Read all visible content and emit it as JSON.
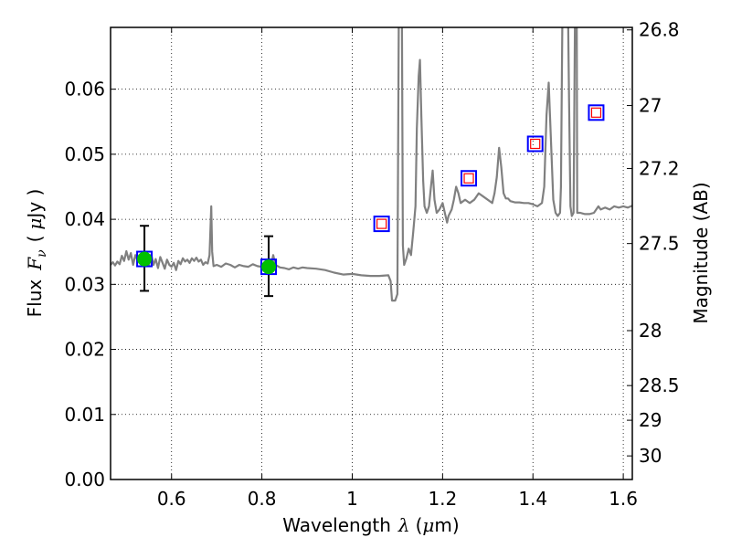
{
  "chart_data": {
    "type": "line",
    "xlabel_prefix": "Wavelength",
    "xlabel_symbol": "λ",
    "xlabel_unit_open": "(",
    "xlabel_unit_mu": "μ",
    "xlabel_unit_rest": "m)",
    "ylabel_prefix": "Flux",
    "ylabel_F": "F",
    "ylabel_nu": "ν",
    "ylabel_unit_open": "(",
    "ylabel_unit_mu": "μ",
    "ylabel_unit_rest": "Jy )",
    "y2label": "Magnitude (AB)",
    "xlim": [
      0.465,
      1.62
    ],
    "ylim": [
      0.0,
      0.0695
    ],
    "grid": true,
    "x_ticks": [
      0.6,
      0.8,
      1.0,
      1.2,
      1.4,
      1.6
    ],
    "x_tick_labels": [
      "0.6",
      "0.8",
      "1",
      "1.2",
      "1.4",
      "1.6"
    ],
    "y_ticks": [
      0.0,
      0.01,
      0.02,
      0.03,
      0.04,
      0.05,
      0.06
    ],
    "y_tick_labels": [
      "0.00",
      "0.01",
      "0.02",
      "0.03",
      "0.04",
      "0.05",
      "0.06"
    ],
    "y2_ticks": [
      26.8,
      27.0,
      27.2,
      27.5,
      28.0,
      28.5,
      29.0,
      30.0
    ],
    "y2_tick_labels": [
      "26.8",
      "27",
      "27.2",
      "27.5",
      "28",
      "28.5",
      "29",
      "30"
    ],
    "colors": {
      "spectrum": "#808080",
      "observed": "#00c000",
      "model_box": "#0000ff",
      "predicted_box": "#ff0000",
      "errorbar": "#000000",
      "grid": "#808080"
    },
    "spectrum": [
      [
        0.465,
        0.033
      ],
      [
        0.47,
        0.0334
      ],
      [
        0.475,
        0.0329
      ],
      [
        0.48,
        0.0335
      ],
      [
        0.485,
        0.0331
      ],
      [
        0.49,
        0.0344
      ],
      [
        0.495,
        0.0336
      ],
      [
        0.5,
        0.0351
      ],
      [
        0.505,
        0.0338
      ],
      [
        0.51,
        0.0348
      ],
      [
        0.515,
        0.033
      ],
      [
        0.52,
        0.0345
      ],
      [
        0.525,
        0.0337
      ],
      [
        0.53,
        0.034
      ],
      [
        0.535,
        0.0332
      ],
      [
        0.54,
        0.0338
      ],
      [
        0.545,
        0.0341
      ],
      [
        0.55,
        0.0328
      ],
      [
        0.555,
        0.0346
      ],
      [
        0.56,
        0.033
      ],
      [
        0.565,
        0.0339
      ],
      [
        0.57,
        0.0325
      ],
      [
        0.575,
        0.0342
      ],
      [
        0.58,
        0.0333
      ],
      [
        0.585,
        0.0324
      ],
      [
        0.59,
        0.0338
      ],
      [
        0.595,
        0.033
      ],
      [
        0.6,
        0.0327
      ],
      [
        0.605,
        0.0333
      ],
      [
        0.61,
        0.0322
      ],
      [
        0.615,
        0.0336
      ],
      [
        0.62,
        0.0331
      ],
      [
        0.625,
        0.034
      ],
      [
        0.63,
        0.0335
      ],
      [
        0.635,
        0.0338
      ],
      [
        0.64,
        0.0333
      ],
      [
        0.645,
        0.034
      ],
      [
        0.65,
        0.0336
      ],
      [
        0.655,
        0.0341
      ],
      [
        0.66,
        0.0335
      ],
      [
        0.665,
        0.0338
      ],
      [
        0.67,
        0.033
      ],
      [
        0.675,
        0.0334
      ],
      [
        0.68,
        0.0332
      ],
      [
        0.684,
        0.0345
      ],
      [
        0.688,
        0.042
      ],
      [
        0.69,
        0.035
      ],
      [
        0.693,
        0.0328
      ],
      [
        0.7,
        0.033
      ],
      [
        0.71,
        0.0327
      ],
      [
        0.72,
        0.0332
      ],
      [
        0.73,
        0.033
      ],
      [
        0.74,
        0.0326
      ],
      [
        0.75,
        0.033
      ],
      [
        0.76,
        0.0328
      ],
      [
        0.77,
        0.0327
      ],
      [
        0.78,
        0.0331
      ],
      [
        0.79,
        0.0328
      ],
      [
        0.8,
        0.0327
      ],
      [
        0.81,
        0.033
      ],
      [
        0.82,
        0.0328
      ],
      [
        0.825,
        0.0345
      ],
      [
        0.83,
        0.033
      ],
      [
        0.84,
        0.0326
      ],
      [
        0.85,
        0.0325
      ],
      [
        0.86,
        0.0323
      ],
      [
        0.87,
        0.0326
      ],
      [
        0.88,
        0.0324
      ],
      [
        0.89,
        0.0326
      ],
      [
        0.9,
        0.0325
      ],
      [
        0.92,
        0.0324
      ],
      [
        0.94,
        0.0322
      ],
      [
        0.96,
        0.0318
      ],
      [
        0.98,
        0.0315
      ],
      [
        1.0,
        0.0316
      ],
      [
        1.02,
        0.0314
      ],
      [
        1.04,
        0.0313
      ],
      [
        1.06,
        0.0313
      ],
      [
        1.08,
        0.0314
      ],
      [
        1.085,
        0.0305
      ],
      [
        1.088,
        0.0275
      ],
      [
        1.095,
        0.0275
      ],
      [
        1.1,
        0.0285
      ],
      [
        1.103,
        0.07
      ],
      [
        1.11,
        0.07
      ],
      [
        1.112,
        0.036
      ],
      [
        1.115,
        0.033
      ],
      [
        1.12,
        0.034
      ],
      [
        1.125,
        0.0355
      ],
      [
        1.13,
        0.0345
      ],
      [
        1.135,
        0.038
      ],
      [
        1.14,
        0.042
      ],
      [
        1.143,
        0.054
      ],
      [
        1.147,
        0.062
      ],
      [
        1.15,
        0.0645
      ],
      [
        1.153,
        0.056
      ],
      [
        1.157,
        0.046
      ],
      [
        1.16,
        0.042
      ],
      [
        1.165,
        0.041
      ],
      [
        1.17,
        0.042
      ],
      [
        1.175,
        0.0455
      ],
      [
        1.178,
        0.0475
      ],
      [
        1.182,
        0.043
      ],
      [
        1.187,
        0.041
      ],
      [
        1.193,
        0.0415
      ],
      [
        1.2,
        0.0425
      ],
      [
        1.205,
        0.041
      ],
      [
        1.21,
        0.0395
      ],
      [
        1.213,
        0.0405
      ],
      [
        1.22,
        0.0415
      ],
      [
        1.225,
        0.043
      ],
      [
        1.23,
        0.045
      ],
      [
        1.235,
        0.044
      ],
      [
        1.24,
        0.0425
      ],
      [
        1.25,
        0.043
      ],
      [
        1.26,
        0.0425
      ],
      [
        1.27,
        0.043
      ],
      [
        1.28,
        0.044
      ],
      [
        1.29,
        0.0435
      ],
      [
        1.3,
        0.043
      ],
      [
        1.31,
        0.0425
      ],
      [
        1.315,
        0.044
      ],
      [
        1.32,
        0.0465
      ],
      [
        1.325,
        0.051
      ],
      [
        1.33,
        0.048
      ],
      [
        1.335,
        0.044
      ],
      [
        1.34,
        0.0432
      ],
      [
        1.345,
        0.0432
      ],
      [
        1.35,
        0.0428
      ],
      [
        1.36,
        0.0426
      ],
      [
        1.37,
        0.0426
      ],
      [
        1.38,
        0.0425
      ],
      [
        1.39,
        0.0425
      ],
      [
        1.4,
        0.0423
      ],
      [
        1.41,
        0.042
      ],
      [
        1.42,
        0.0425
      ],
      [
        1.425,
        0.045
      ],
      [
        1.43,
        0.056
      ],
      [
        1.435,
        0.061
      ],
      [
        1.44,
        0.052
      ],
      [
        1.445,
        0.043
      ],
      [
        1.45,
        0.041
      ],
      [
        1.455,
        0.0405
      ],
      [
        1.46,
        0.041
      ],
      [
        1.462,
        0.045
      ],
      [
        1.465,
        0.07
      ],
      [
        1.478,
        0.07
      ],
      [
        1.48,
        0.058
      ],
      [
        1.483,
        0.042
      ],
      [
        1.486,
        0.0405
      ],
      [
        1.49,
        0.041
      ],
      [
        1.493,
        0.07
      ],
      [
        1.497,
        0.07
      ],
      [
        1.498,
        0.041
      ],
      [
        1.505,
        0.041
      ],
      [
        1.515,
        0.0408
      ],
      [
        1.525,
        0.0408
      ],
      [
        1.535,
        0.041
      ],
      [
        1.54,
        0.0415
      ],
      [
        1.545,
        0.042
      ],
      [
        1.55,
        0.0415
      ],
      [
        1.56,
        0.0418
      ],
      [
        1.57,
        0.0415
      ],
      [
        1.58,
        0.042
      ],
      [
        1.59,
        0.0418
      ],
      [
        1.6,
        0.042
      ],
      [
        1.61,
        0.0418
      ],
      [
        1.62,
        0.0421
      ]
    ],
    "observed_points": [
      {
        "x": 0.54,
        "y": 0.0339,
        "yerr_low": 0.029,
        "yerr_high": 0.039
      },
      {
        "x": 0.815,
        "y": 0.0327,
        "yerr_low": 0.0282,
        "yerr_high": 0.0374
      }
    ],
    "model_boxes": [
      {
        "x": 0.54,
        "y": 0.0339,
        "inner": false
      },
      {
        "x": 0.815,
        "y": 0.0327,
        "inner": false
      },
      {
        "x": 1.065,
        "y": 0.0393,
        "inner": true
      },
      {
        "x": 1.258,
        "y": 0.0463,
        "inner": true
      },
      {
        "x": 1.405,
        "y": 0.0516,
        "inner": true
      },
      {
        "x": 1.54,
        "y": 0.0564,
        "inner": true
      }
    ]
  }
}
